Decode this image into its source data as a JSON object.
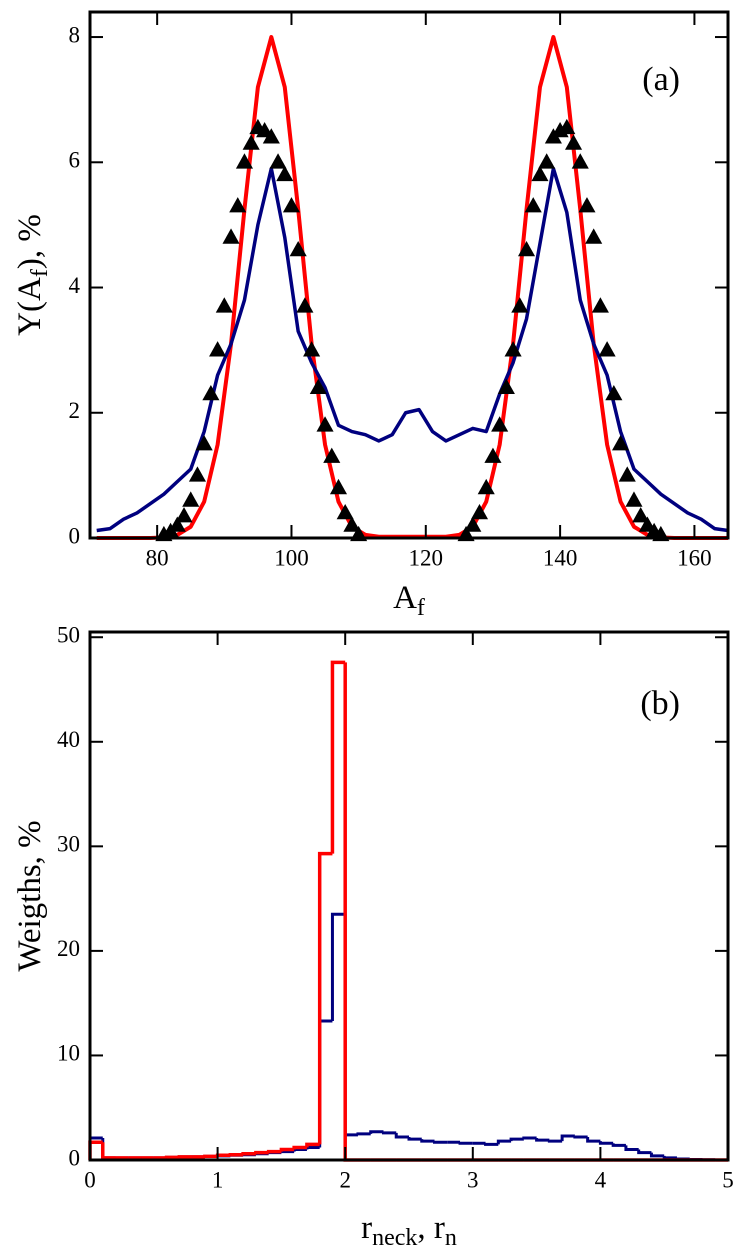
{
  "chart_data": [
    {
      "type": "line",
      "annotation": "(a)",
      "xlabel": [
        "A",
        "f"
      ],
      "ylabel": [
        "Y(A",
        "f",
        "),  %"
      ],
      "xlim": [
        70,
        165
      ],
      "ylim": [
        0,
        8.4
      ],
      "xticks": [
        80,
        100,
        120,
        140,
        160
      ],
      "yticks": [
        0,
        2,
        4,
        6,
        8
      ],
      "x": [
        71,
        73,
        75,
        77,
        79,
        81,
        83,
        85,
        87,
        89,
        91,
        93,
        95,
        97,
        99,
        101,
        103,
        105,
        107,
        109,
        111,
        113,
        115,
        117,
        119,
        121,
        123,
        125,
        127,
        129,
        131,
        133,
        135,
        137,
        139,
        141,
        143,
        145,
        147,
        149,
        151,
        153,
        155,
        157,
        159,
        161,
        163,
        165
      ],
      "series": [
        {
          "color": "#ff0000",
          "values": [
            0,
            0,
            0,
            0,
            0,
            0.01,
            0.05,
            0.18,
            0.58,
            1.49,
            3.1,
            5.25,
            7.2,
            8.0,
            7.2,
            5.25,
            3.1,
            1.49,
            0.58,
            0.18,
            0.05,
            0.02,
            0.02,
            0.02,
            0.02,
            0.02,
            0.02,
            0.05,
            0.18,
            0.58,
            1.49,
            3.1,
            5.25,
            7.2,
            8.0,
            7.2,
            5.25,
            3.1,
            1.49,
            0.58,
            0.18,
            0.05,
            0.01,
            0,
            0,
            0,
            0,
            0
          ]
        },
        {
          "color": "#00007f",
          "values": [
            0.12,
            0.15,
            0.3,
            0.4,
            0.55,
            0.7,
            0.9,
            1.1,
            1.7,
            2.6,
            3.1,
            3.8,
            5.0,
            5.9,
            4.8,
            3.3,
            2.8,
            2.4,
            1.8,
            1.7,
            1.65,
            1.55,
            1.65,
            2.0,
            2.05,
            1.7,
            1.55,
            1.65,
            1.75,
            1.7,
            2.3,
            2.8,
            3.5,
            4.7,
            5.9,
            5.2,
            3.8,
            3.1,
            2.6,
            1.7,
            1.1,
            0.9,
            0.7,
            0.55,
            0.4,
            0.3,
            0.15,
            0.12
          ]
        },
        {
          "color": "#000000",
          "marker": "triangle",
          "x": [
            81,
            82,
            83,
            84,
            85,
            86,
            87,
            88,
            89,
            90,
            91,
            92,
            93,
            94,
            95,
            96,
            97,
            98,
            99,
            100,
            101,
            102,
            103,
            104,
            105,
            106,
            107,
            108,
            109,
            110,
            126,
            127,
            128,
            129,
            130,
            131,
            132,
            133,
            134,
            135,
            136,
            137,
            138,
            139,
            140,
            141,
            142,
            143,
            144,
            145,
            146,
            147,
            148,
            149,
            150,
            151,
            152,
            153,
            154,
            155
          ],
          "values": [
            0.05,
            0.1,
            0.2,
            0.35,
            0.6,
            1.0,
            1.5,
            2.3,
            3.0,
            3.7,
            4.8,
            5.3,
            6.0,
            6.3,
            6.55,
            6.5,
            6.4,
            6.0,
            5.8,
            5.3,
            4.6,
            3.7,
            3.0,
            2.4,
            1.8,
            1.3,
            0.8,
            0.4,
            0.2,
            0.05,
            0.05,
            0.2,
            0.4,
            0.8,
            1.3,
            1.8,
            2.4,
            3.0,
            3.7,
            4.6,
            5.3,
            5.8,
            6.0,
            6.4,
            6.5,
            6.55,
            6.3,
            6.0,
            5.3,
            4.8,
            3.7,
            3.0,
            2.3,
            1.5,
            1.0,
            0.6,
            0.35,
            0.2,
            0.1,
            0.05
          ]
        }
      ]
    },
    {
      "type": "histogram",
      "annotation": "(b)",
      "xlabel": [
        "r",
        "neck",
        ",  r",
        "n"
      ],
      "ylabel": [
        "Weigths,  %"
      ],
      "xlim": [
        0,
        5
      ],
      "ylim": [
        0,
        50.5
      ],
      "xticks": [
        0,
        1,
        2,
        3,
        4,
        5
      ],
      "yticks": [
        0,
        10,
        20,
        30,
        40,
        50
      ],
      "bins": [
        0,
        0.1,
        0.2,
        0.3,
        0.4,
        0.5,
        0.6,
        0.7,
        0.8,
        0.9,
        1,
        1.1,
        1.2,
        1.3,
        1.4,
        1.5,
        1.6,
        1.7,
        1.8,
        1.9,
        2,
        2.1,
        2.2,
        2.3,
        2.4,
        2.5,
        2.6,
        2.7,
        2.8,
        2.9,
        3,
        3.1,
        3.2,
        3.3,
        3.4,
        3.5,
        3.6,
        3.7,
        3.8,
        3.9,
        4,
        4.1,
        4.2,
        4.3,
        4.4,
        4.5,
        4.6,
        4.7,
        4.8,
        4.9,
        5
      ],
      "series": [
        {
          "color": "#00007f",
          "values": [
            2.1,
            0.2,
            0.2,
            0.2,
            0.2,
            0.2,
            0.25,
            0.3,
            0.3,
            0.35,
            0.4,
            0.45,
            0.5,
            0.6,
            0.7,
            0.8,
            1.0,
            1.2,
            13.3,
            23.5,
            2.4,
            2.5,
            2.7,
            2.6,
            2.2,
            2.0,
            1.8,
            1.7,
            1.7,
            1.6,
            1.6,
            1.5,
            1.8,
            2.0,
            2.1,
            1.9,
            1.8,
            2.3,
            2.2,
            1.8,
            1.6,
            1.4,
            1.0,
            0.7,
            0.4,
            0.2,
            0.1,
            0.05,
            0.02,
            0
          ]
        },
        {
          "color": "#ff0000",
          "values": [
            1.7,
            0.2,
            0.2,
            0.2,
            0.2,
            0.2,
            0.25,
            0.3,
            0.3,
            0.35,
            0.45,
            0.5,
            0.6,
            0.7,
            0.8,
            1.0,
            1.2,
            1.5,
            29.3,
            47.6,
            0,
            0,
            0,
            0,
            0,
            0,
            0,
            0,
            0,
            0,
            0,
            0,
            0,
            0,
            0,
            0,
            0,
            0,
            0,
            0,
            0,
            0,
            0,
            0,
            0,
            0,
            0,
            0,
            0,
            0
          ]
        }
      ]
    }
  ]
}
